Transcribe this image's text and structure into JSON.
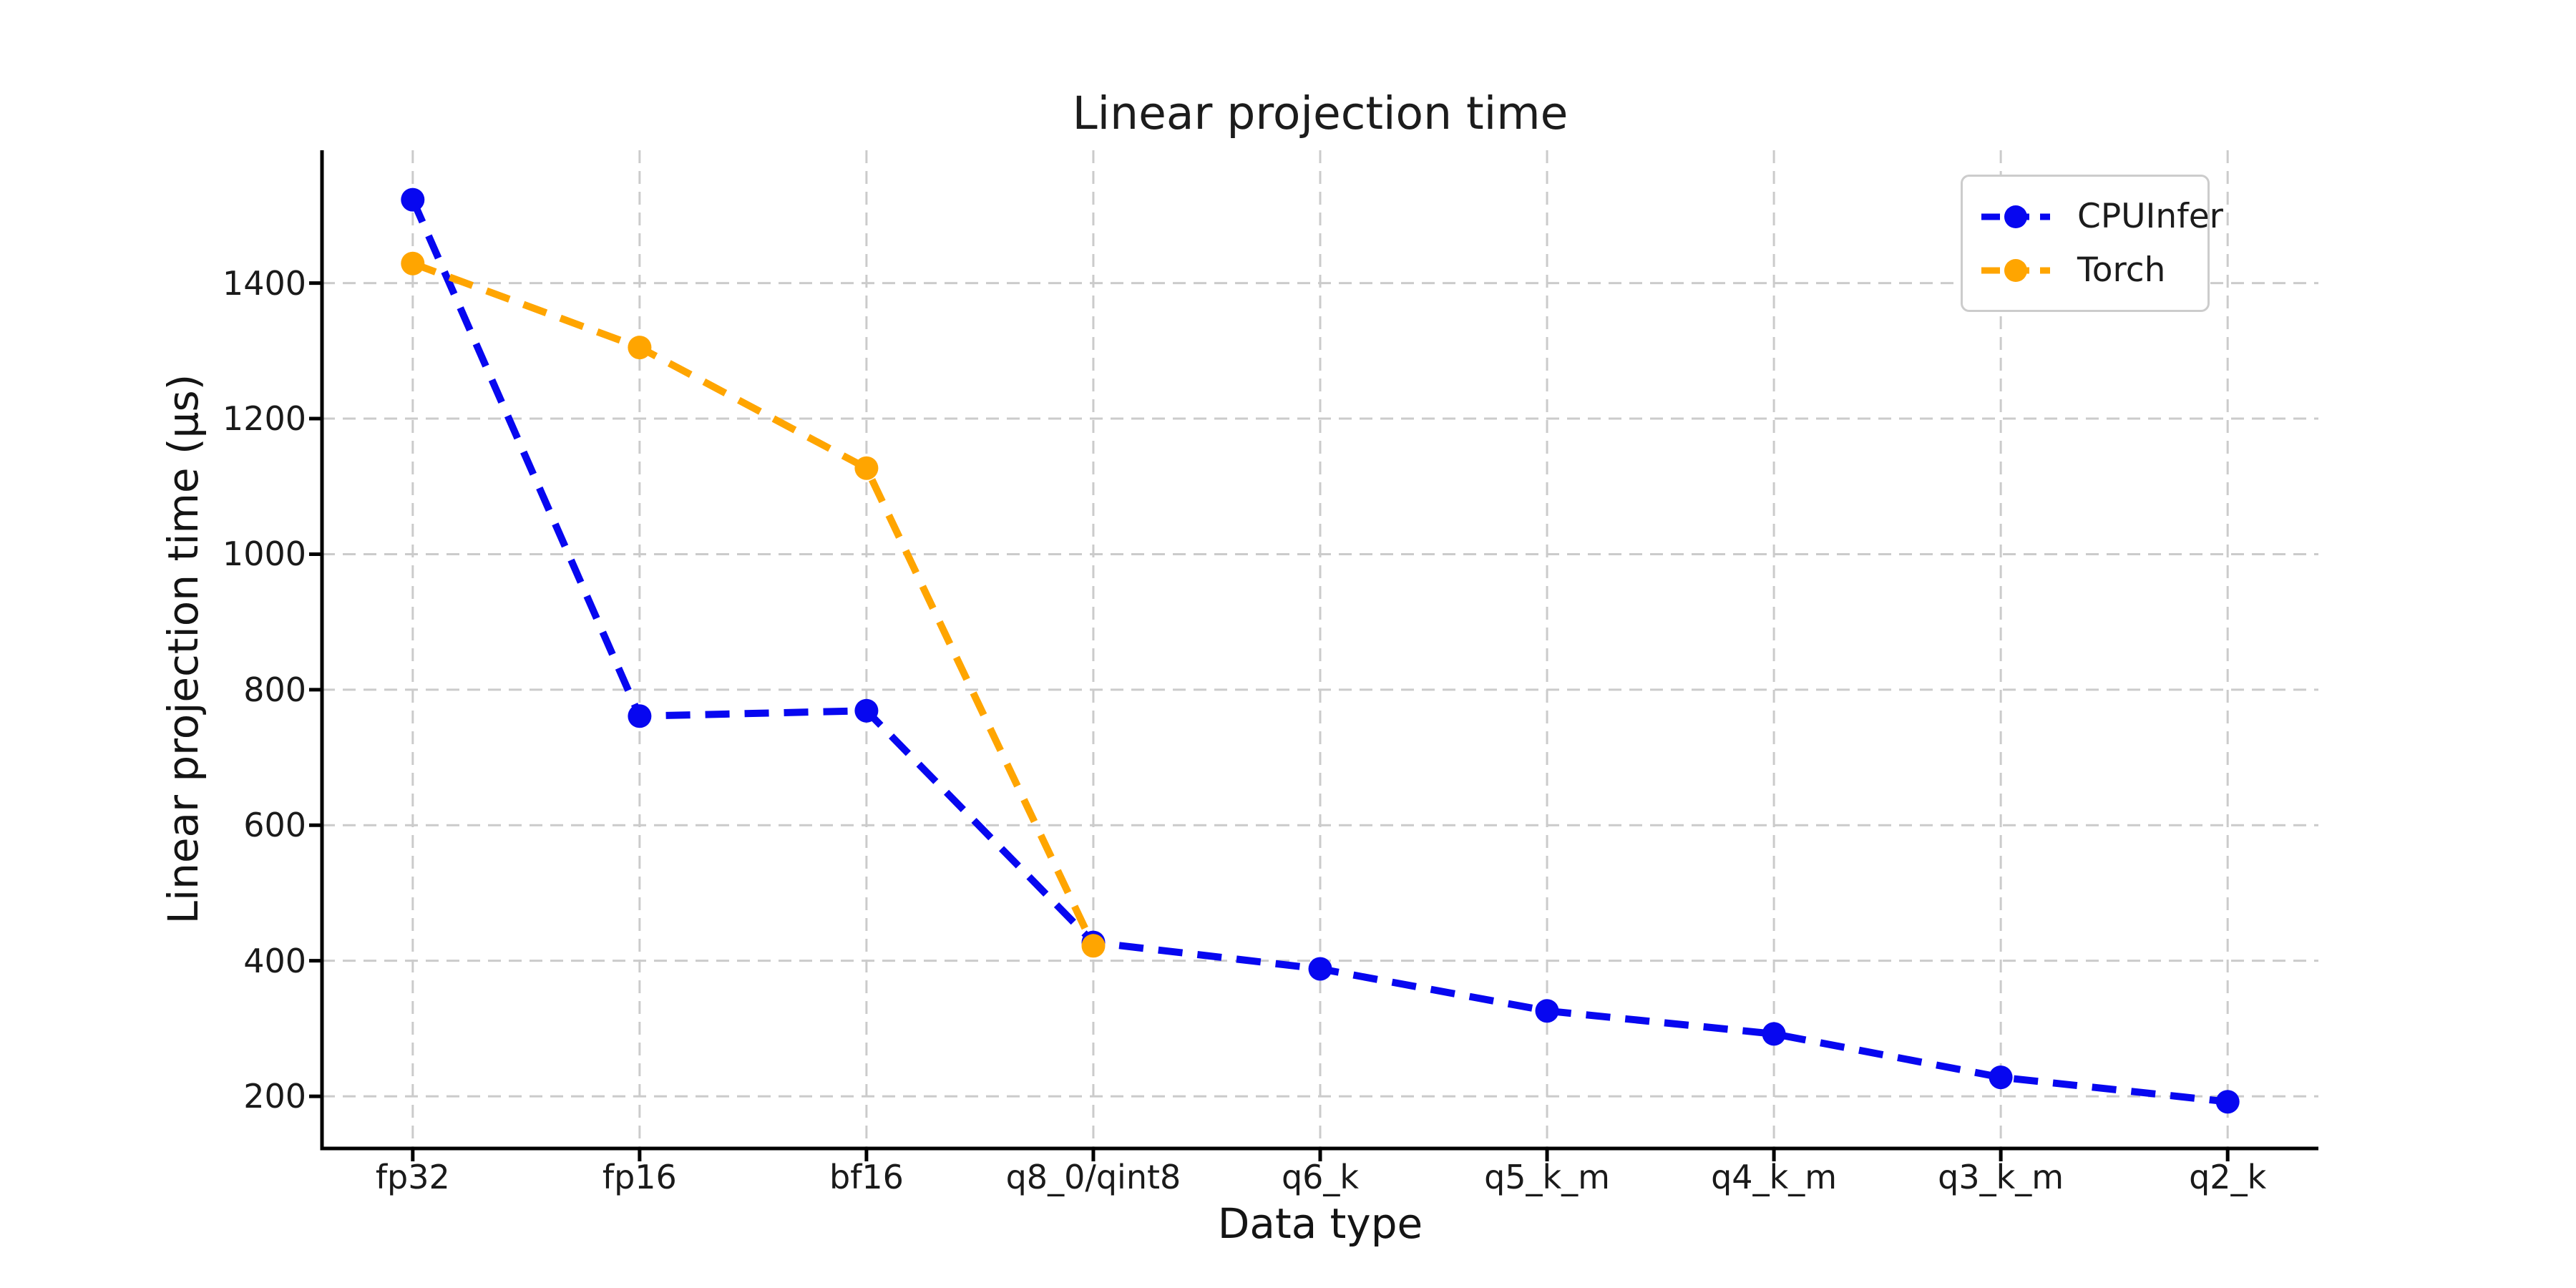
{
  "chart_data": {
    "type": "line",
    "title": "Linear projection time",
    "xlabel": "Data type",
    "ylabel": "Linear projection time (μs)",
    "categories": [
      "fp32",
      "fp16",
      "bf16",
      "q8_0/qint8",
      "q6_k",
      "q5_k_m",
      "q4_k_m",
      "q3_k_m",
      "q2_k"
    ],
    "series": [
      {
        "name": "CPUInfer",
        "color": "#0707f0",
        "line_style": "dashed",
        "marker": "circle",
        "values": [
          1523,
          761,
          769,
          427,
          388,
          326,
          292,
          228,
          192
        ]
      },
      {
        "name": "Torch",
        "color": "#ffa500",
        "line_style": "dashed",
        "marker": "circle",
        "values": [
          1429,
          1305,
          1127,
          422
        ]
      }
    ],
    "yticks": [
      200,
      400,
      600,
      800,
      1000,
      1200,
      1400
    ],
    "ylim": [
      123,
      1596
    ],
    "xlim": [
      -0.4,
      8.4
    ],
    "grid": true,
    "grid_color": "#cbcbcb",
    "axis_color": "#000000",
    "text_color": "#1a1a1a",
    "legend_position": "upper right"
  }
}
